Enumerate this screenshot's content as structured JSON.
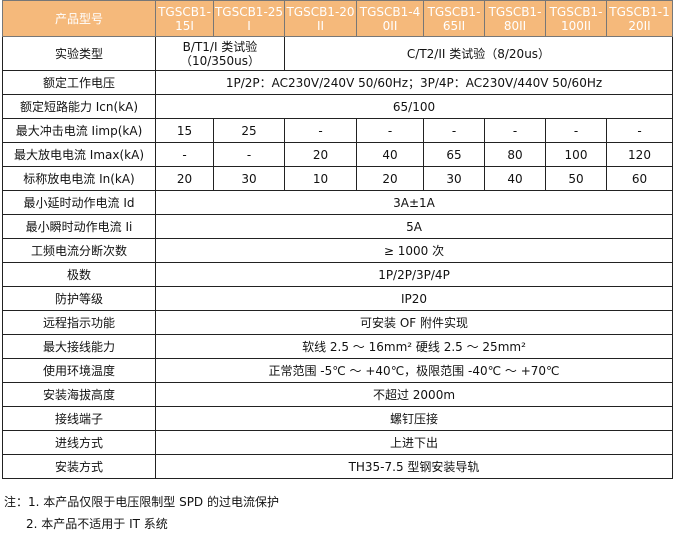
{
  "header": {
    "label": "产品型号",
    "models": [
      "TGSCB1-15I",
      "TGSCB1-25I",
      "TGSCB1-20II",
      "TGSCB1-40II",
      "TGSCB1-65II",
      "TGSCB1-80II",
      "TGSCB1-100II",
      "TGSCB1-120II"
    ]
  },
  "header_colors": {
    "background": "#f5b97b",
    "text": "#ffffff"
  },
  "rows": [
    {
      "label": "实验类型",
      "cells": [
        {
          "text": "B/T1/I 类试验（10/350us）",
          "span": 2
        },
        {
          "text": "C/T2/II 类试验（8/20us）",
          "span": 6
        }
      ]
    },
    {
      "label": "额定工作电压",
      "cells": [
        {
          "text": "1P/2P：AC230V/240V 50/60Hz；3P/4P：AC230V/440V 50/60Hz",
          "span": 8
        }
      ]
    },
    {
      "label": "额定短路能力 Icn(kA)",
      "cells": [
        {
          "text": "65/100",
          "span": 8
        }
      ]
    },
    {
      "label": "最大冲击电流 Iimp(kA)",
      "cells": [
        {
          "text": "15"
        },
        {
          "text": "25"
        },
        {
          "text": "-"
        },
        {
          "text": "-"
        },
        {
          "text": "-"
        },
        {
          "text": "-"
        },
        {
          "text": "-"
        },
        {
          "text": "-"
        }
      ]
    },
    {
      "label": "最大放电电流 Imax(kA)",
      "cells": [
        {
          "text": "-"
        },
        {
          "text": "-"
        },
        {
          "text": "20"
        },
        {
          "text": "40"
        },
        {
          "text": "65"
        },
        {
          "text": "80"
        },
        {
          "text": "100"
        },
        {
          "text": "120"
        }
      ]
    },
    {
      "label": "标称放电电流 In(kA)",
      "cells": [
        {
          "text": "20"
        },
        {
          "text": "30"
        },
        {
          "text": "10"
        },
        {
          "text": "20"
        },
        {
          "text": "30"
        },
        {
          "text": "40"
        },
        {
          "text": "50"
        },
        {
          "text": "60"
        }
      ]
    },
    {
      "label": "最小延时动作电流 Id",
      "cells": [
        {
          "text": "3A±1A",
          "span": 8
        }
      ]
    },
    {
      "label": "最小瞬时动作电流 Ii",
      "cells": [
        {
          "text": "5A",
          "span": 8
        }
      ]
    },
    {
      "label": "工频电流分断次数",
      "cells": [
        {
          "text": "≥ 1000 次",
          "span": 8
        }
      ]
    },
    {
      "label": "极数",
      "cells": [
        {
          "text": "1P/2P/3P/4P",
          "span": 8
        }
      ]
    },
    {
      "label": "防护等级",
      "cells": [
        {
          "text": "IP20",
          "span": 8
        }
      ]
    },
    {
      "label": "远程指示功能",
      "cells": [
        {
          "text": "可安装 OF 附件实现",
          "span": 8
        }
      ]
    },
    {
      "label": "最大接线能力",
      "cells": [
        {
          "text": "软线 2.5 ～ 16mm² 硬线 2.5 ～ 25mm²",
          "span": 8
        }
      ]
    },
    {
      "label": "使用环境温度",
      "cells": [
        {
          "text": "正常范围 -5℃ ～ +40℃，极限范围 -40℃ ～ +70℃",
          "span": 8
        }
      ]
    },
    {
      "label": "安装海拔高度",
      "cells": [
        {
          "text": "不超过 2000m",
          "span": 8
        }
      ]
    },
    {
      "label": "接线端子",
      "cells": [
        {
          "text": "螺钉压接",
          "span": 8
        }
      ]
    },
    {
      "label": "进线方式",
      "cells": [
        {
          "text": "上进下出",
          "span": 8
        }
      ]
    },
    {
      "label": "安装方式",
      "cells": [
        {
          "text": "TH35-7.5 型钢安装导轨",
          "span": 8
        }
      ]
    }
  ],
  "notes": [
    "注：1. 本产品仅限于电压限制型 SPD 的过电流保护",
    "2. 本产品不适用于 IT 系统"
  ]
}
